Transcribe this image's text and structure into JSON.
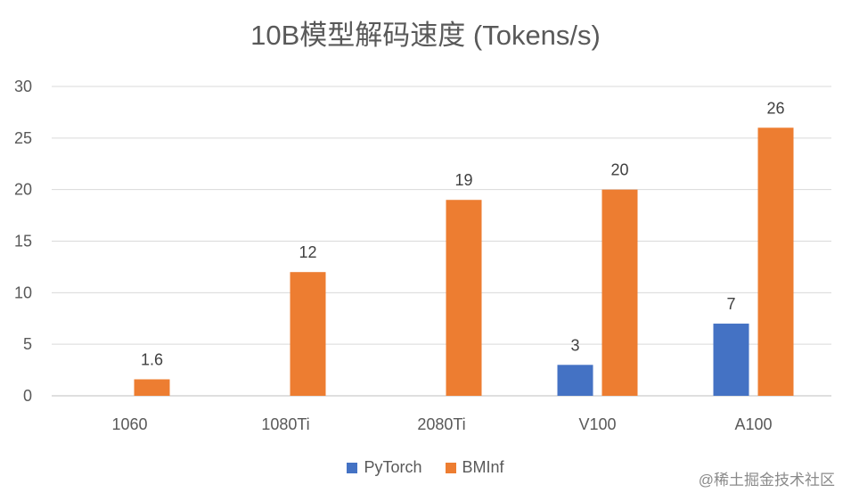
{
  "chart_data": {
    "type": "bar",
    "title": "10B模型解码速度 (Tokens/s)",
    "categories": [
      "1060",
      "1080Ti",
      "2080Ti",
      "V100",
      "A100"
    ],
    "series": [
      {
        "name": "PyTorch",
        "color": "#4472C4",
        "values": [
          null,
          null,
          null,
          3,
          7
        ]
      },
      {
        "name": "BMInf",
        "color": "#ED7D31",
        "values": [
          1.6,
          12,
          19,
          20,
          26
        ]
      }
    ],
    "ylim": [
      0,
      30
    ],
    "yticks": [
      0,
      5,
      10,
      15,
      20,
      25,
      30
    ],
    "grid": true,
    "legend": "bottom"
  },
  "watermark": "@稀土掘金技术社区"
}
